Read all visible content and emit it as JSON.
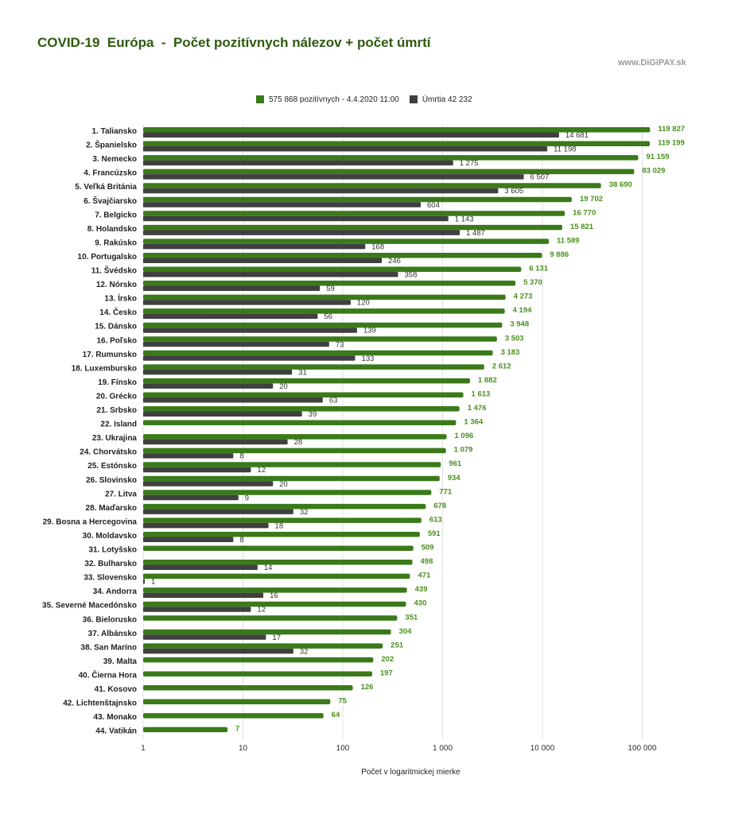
{
  "header": {
    "title": "COVID-19  Európa  -  Počet pozitívnych nálezov + počet úmrtí",
    "source": "www.DiGiPAY.sk"
  },
  "legend": {
    "positive_label": "575 868 pozitívnych - 4.4.2020  11:00",
    "deaths_label": "Úmrtia 42 232"
  },
  "colors": {
    "positive": "#3b7a1a",
    "positive_text": "#4a8f1f",
    "deaths": "#404040",
    "title": "#2e5a0f",
    "grid": "#e0e0e0"
  },
  "chart_data": {
    "type": "bar",
    "orientation": "horizontal",
    "scale": "log",
    "title": "COVID-19  Európa  -  Počet pozitívnych nálezov + počet úmrtí",
    "xlabel": "Počet  v logaritmickej mierke",
    "xlim": [
      1,
      150000
    ],
    "xticks": [
      1,
      10,
      100,
      1000,
      10000,
      100000
    ],
    "xtick_labels": [
      "1",
      "10",
      "100",
      "1 000",
      "10 000",
      "100 000"
    ],
    "grid": true,
    "legend_position": "top",
    "categories": [
      "1. Taliansko",
      "2. Španielsko",
      "3. Nemecko",
      "4. Francúzsko",
      "5. Veľká Británia",
      "6. Švajčiarsko",
      "7. Belgicko",
      "8. Holandsko",
      "9. Rakúsko",
      "10. Portugalsko",
      "11. Švédsko",
      "12. Nórsko",
      "13. Írsko",
      "14. Česko",
      "15. Dánsko",
      "16. Poľsko",
      "17. Rumunsko",
      "18. Luxembursko",
      "19. Fínsko",
      "20. Grécko",
      "21. Srbsko",
      "22. Island",
      "23. Ukrajina",
      "24. Chorvátsko",
      "25. Estónsko",
      "26. Slovinsko",
      "27. Litva",
      "28. Maďarsko",
      "29. Bosna a Hercegovina",
      "30. Moldavsko",
      "31. Lotyšsko",
      "32. Bulharsko",
      "33. Slovensko",
      "34. Andorra",
      "35. Severné Macedónsko",
      "36. Bielorusko",
      "37. Albánsko",
      "38. San Maríno",
      "39. Malta",
      "40. Čierna Hora",
      "41. Kosovo",
      "42. Lichtenštajnsko",
      "43. Monako",
      "44. Vatikán"
    ],
    "series": [
      {
        "name": "575 868 pozitívnych - 4.4.2020  11:00",
        "values": [
          119827,
          119199,
          91159,
          83029,
          38690,
          19702,
          16770,
          15821,
          11589,
          9886,
          6131,
          5370,
          4273,
          4194,
          3948,
          3503,
          3183,
          2612,
          1882,
          1613,
          1476,
          1364,
          1096,
          1079,
          961,
          934,
          771,
          678,
          613,
          591,
          509,
          498,
          471,
          439,
          430,
          351,
          304,
          251,
          202,
          197,
          126,
          75,
          64,
          7
        ],
        "labels": [
          "119 827",
          "119 199",
          "91 159",
          "83 029",
          "38 690",
          "19 702",
          "16 770",
          "15 821",
          "11 589",
          "9 886",
          "6 131",
          "5 370",
          "4 273",
          "4 194",
          "3 948",
          "3 503",
          "3 183",
          "2 612",
          "1 882",
          "1 613",
          "1 476",
          "1 364",
          "1 096",
          "1 079",
          "961",
          "934",
          "771",
          "678",
          "613",
          "591",
          "509",
          "498",
          "471",
          "439",
          "430",
          "351",
          "304",
          "251",
          "202",
          "197",
          "126",
          "75",
          "64",
          "7"
        ]
      },
      {
        "name": "Úmrtia 42 232",
        "values": [
          14681,
          11198,
          1275,
          6507,
          3605,
          604,
          1143,
          1487,
          168,
          246,
          358,
          59,
          120,
          56,
          139,
          73,
          133,
          31,
          20,
          63,
          39,
          null,
          28,
          8,
          12,
          20,
          9,
          32,
          18,
          8,
          null,
          14,
          1,
          16,
          12,
          null,
          17,
          32,
          null,
          null,
          null,
          null,
          null,
          null
        ],
        "labels": [
          "14 681",
          "11 198",
          "1 275",
          "6 507",
          "3 605",
          "604",
          "1 143",
          "1 487",
          "168",
          "246",
          "358",
          "59",
          "120",
          "56",
          "139",
          "73",
          "133",
          "31",
          "20",
          "63",
          "39",
          null,
          "28",
          "8",
          "12",
          "20",
          "9",
          "32",
          "18",
          "8",
          null,
          "14",
          "1",
          "16",
          "12",
          null,
          "17",
          "32",
          null,
          null,
          null,
          null,
          null,
          null
        ]
      }
    ]
  }
}
